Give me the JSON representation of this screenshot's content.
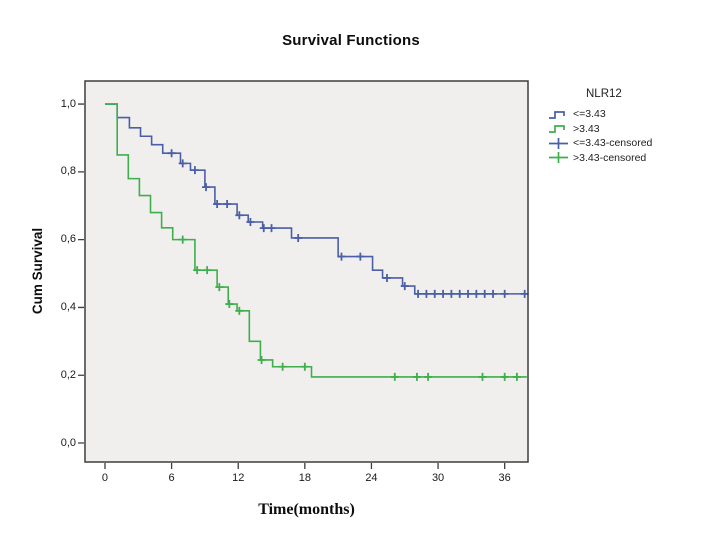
{
  "title": "Survival Functions",
  "legend": {
    "title": "NLR12",
    "items": [
      {
        "label": "<=3.43",
        "color": "#4a5fa5",
        "glyph": "step-line"
      },
      {
        "label": ">3.43",
        "color": "#3fae4c",
        "glyph": "step-line"
      },
      {
        "label": "<=3.43-censored",
        "color": "#4a5fa5",
        "glyph": "censor-plus"
      },
      {
        "label": ">3.43-censored",
        "color": "#3fae4c",
        "glyph": "censor-plus"
      }
    ]
  },
  "chart_data": {
    "type": "line",
    "subtype": "kaplan-meier-step",
    "title": "Survival Functions",
    "xlabel": "Time(months)",
    "ylabel": "Cum Survival",
    "xlim": [
      -1.8,
      38.1
    ],
    "ylim": [
      -0.056,
      1.068
    ],
    "grid": false,
    "legend_position": "right-outside",
    "background": "#f0efed",
    "border_color": "#3d3d3d",
    "x_ticks": [
      {
        "value": 0,
        "label": "0"
      },
      {
        "value": 6,
        "label": "6"
      },
      {
        "value": 12,
        "label": "12"
      },
      {
        "value": 18,
        "label": "18"
      },
      {
        "value": 24,
        "label": "24"
      },
      {
        "value": 30,
        "label": "30"
      },
      {
        "value": 36,
        "label": "36"
      }
    ],
    "y_ticks": [
      {
        "value": 0.0,
        "label": "0,0"
      },
      {
        "value": 0.2,
        "label": "0,2"
      },
      {
        "value": 0.4,
        "label": "0,4"
      },
      {
        "value": 0.6,
        "label": "0,6"
      },
      {
        "value": 0.8,
        "label": "0,8"
      },
      {
        "value": 1.0,
        "label": "1,0"
      }
    ],
    "t_start": 0,
    "t_end": 38.0,
    "series": [
      {
        "name": "<=3.43",
        "color": "#4a5fa5",
        "start_value": 1.0,
        "steps": [
          [
            1.1,
            0.96
          ],
          [
            2.2,
            0.93
          ],
          [
            3.2,
            0.905
          ],
          [
            4.2,
            0.88
          ],
          [
            5.2,
            0.855
          ],
          [
            6.8,
            0.825
          ],
          [
            7.7,
            0.805
          ],
          [
            9.0,
            0.755
          ],
          [
            9.9,
            0.705
          ],
          [
            11.9,
            0.672
          ],
          [
            12.9,
            0.652
          ],
          [
            14.2,
            0.634
          ],
          [
            16.8,
            0.605
          ],
          [
            21.0,
            0.55
          ],
          [
            24.1,
            0.51
          ],
          [
            25.0,
            0.487
          ],
          [
            26.8,
            0.463
          ],
          [
            27.9,
            0.44
          ]
        ],
        "censored": [
          [
            6.0,
            0.855
          ],
          [
            7.0,
            0.825
          ],
          [
            8.1,
            0.805
          ],
          [
            9.1,
            0.755
          ],
          [
            10.1,
            0.705
          ],
          [
            11.0,
            0.705
          ],
          [
            12.1,
            0.672
          ],
          [
            13.1,
            0.652
          ],
          [
            14.3,
            0.634
          ],
          [
            15.0,
            0.634
          ],
          [
            17.4,
            0.605
          ],
          [
            21.3,
            0.55
          ],
          [
            23.0,
            0.55
          ],
          [
            25.4,
            0.487
          ],
          [
            27.0,
            0.463
          ],
          [
            28.2,
            0.44
          ],
          [
            28.95,
            0.44
          ],
          [
            29.7,
            0.44
          ],
          [
            30.45,
            0.44
          ],
          [
            31.2,
            0.44
          ],
          [
            31.95,
            0.44
          ],
          [
            32.7,
            0.44
          ],
          [
            33.45,
            0.44
          ],
          [
            34.2,
            0.44
          ],
          [
            34.95,
            0.44
          ],
          [
            36.0,
            0.44
          ],
          [
            37.8,
            0.44
          ]
        ]
      },
      {
        "name": ">3.43",
        "color": "#3fae4c",
        "start_value": 1.0,
        "steps": [
          [
            1.1,
            0.85
          ],
          [
            2.1,
            0.78
          ],
          [
            3.1,
            0.73
          ],
          [
            4.1,
            0.68
          ],
          [
            5.1,
            0.635
          ],
          [
            6.1,
            0.6
          ],
          [
            8.1,
            0.51
          ],
          [
            10.1,
            0.46
          ],
          [
            11.1,
            0.41
          ],
          [
            11.9,
            0.39
          ],
          [
            13.0,
            0.3
          ],
          [
            14.0,
            0.245
          ],
          [
            15.1,
            0.225
          ],
          [
            18.6,
            0.195
          ]
        ],
        "censored": [
          [
            7.0,
            0.6
          ],
          [
            8.3,
            0.51
          ],
          [
            9.2,
            0.51
          ],
          [
            10.3,
            0.46
          ],
          [
            11.2,
            0.41
          ],
          [
            12.1,
            0.39
          ],
          [
            14.1,
            0.245
          ],
          [
            16.0,
            0.225
          ],
          [
            18.0,
            0.225
          ],
          [
            26.1,
            0.195
          ],
          [
            28.1,
            0.195
          ],
          [
            29.1,
            0.195
          ],
          [
            34.0,
            0.195
          ],
          [
            36.0,
            0.195
          ],
          [
            37.1,
            0.195
          ]
        ]
      }
    ]
  }
}
